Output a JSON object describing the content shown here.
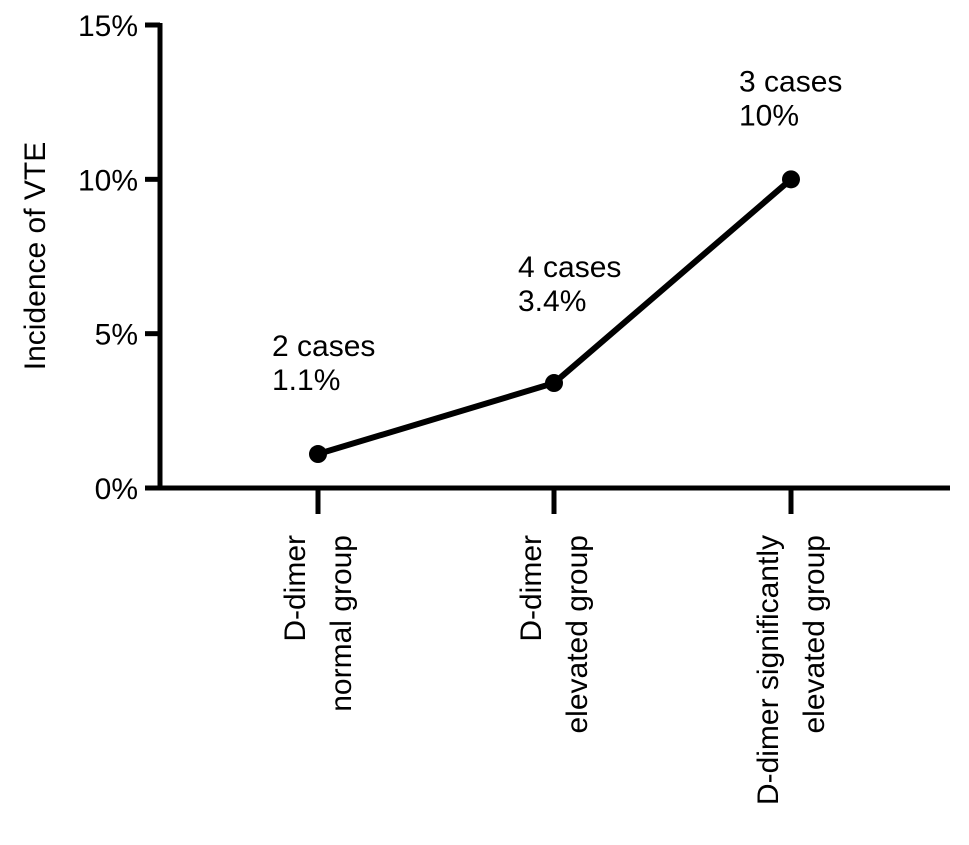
{
  "chart_data": {
    "type": "line",
    "title": "",
    "ylabel": "Incidence of VTE",
    "xlabel": "",
    "ylim": [
      0,
      15
    ],
    "y_ticks": [
      {
        "value": 0,
        "label": "0%"
      },
      {
        "value": 5,
        "label": "5%"
      },
      {
        "value": 10,
        "label": "10%"
      },
      {
        "value": 15,
        "label": "15%"
      }
    ],
    "categories": [
      {
        "lines": [
          "D-dimer",
          "normal group"
        ]
      },
      {
        "lines": [
          "D-dimer",
          "elevated group"
        ]
      },
      {
        "lines": [
          "D-dimer significantly",
          "elevated group"
        ]
      }
    ],
    "series": [
      {
        "values": [
          1.1,
          3.4,
          10
        ],
        "annotations": [
          {
            "cases": "2 cases",
            "percent": "1.1%"
          },
          {
            "cases": "4 cases",
            "percent": "3.4%"
          },
          {
            "cases": "3 cases",
            "percent": "10%"
          }
        ]
      }
    ],
    "grid": false,
    "legend": "none",
    "colors": {
      "line": "#000000",
      "marker": "#000000",
      "axis": "#000000"
    }
  }
}
